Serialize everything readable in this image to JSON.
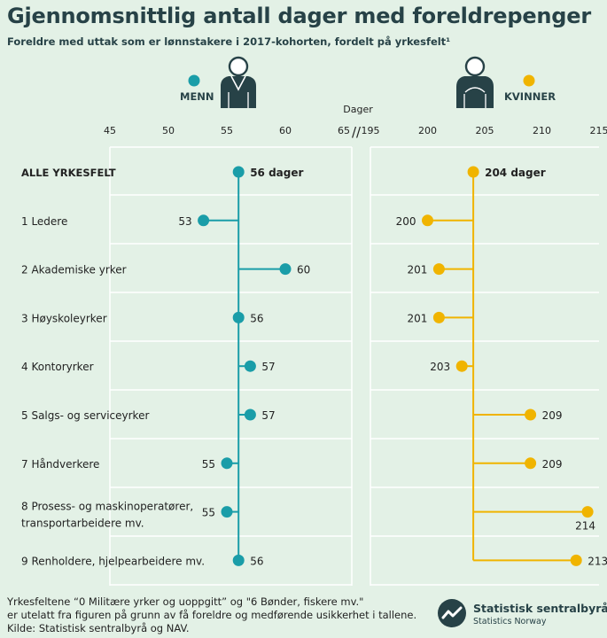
{
  "title": "Gjennomsnittlig antall dager med foreldrepenger",
  "subtitle": "Foreldre med uttak som er lønnstakere i 2017-kohorten, fordelt på yrkesfelt¹",
  "footnote": {
    "line1": "Yrkesfeltene “0 Militære yrker og uoppgitt” og \"6 Bønder, fiskere mv.\"",
    "line2": "er utelatt fra figuren på grunn av få foreldre og medførende usikkerhet i tallene.",
    "line3": "Kilde: Statistisk sentralbyrå og NAV."
  },
  "logo": {
    "name": "Statistisk sentralbyrå",
    "sub": "Statistics Norway",
    "icon": "ssb-logo-icon"
  },
  "colors": {
    "menn": "#1a9da8",
    "kvinner": "#f0b400",
    "gridline": "#ffffff",
    "text_dark": "#274247"
  },
  "chart_data": {
    "type": "dot",
    "title": "Gjennomsnittlig antall dager med foreldrepenger",
    "xlabel": "Dager",
    "categories": [
      "ALLE YRKESFELT",
      "1 Ledere",
      "2 Akademiske yrker",
      "3 Høyskoleyrker",
      "4 Kontoryrker",
      "5 Salgs- og serviceyrker",
      "7 Håndverkere",
      "8 Prosess- og maskinoperatører,\ntransportarbeidere mv.",
      "9 Renholdere, hjelpearbeidere mv."
    ],
    "series": [
      {
        "name": "MENN",
        "values": [
          56,
          53,
          60,
          56,
          57,
          57,
          55,
          55,
          56
        ],
        "reference": 56,
        "reference_label": "56 dager",
        "xlim": [
          45,
          65
        ],
        "ticks": [
          "45",
          "50",
          "55",
          "60",
          "65"
        ],
        "icon": "man-figure-icon"
      },
      {
        "name": "KVINNER",
        "values": [
          204,
          200,
          201,
          201,
          203,
          209,
          209,
          214,
          213
        ],
        "reference": 204,
        "reference_label": "204 dager",
        "xlim": [
          195,
          215
        ],
        "ticks": [
          "195",
          "200",
          "205",
          "210",
          "215"
        ],
        "icon": "woman-figure-icon"
      }
    ],
    "axis_break_symbol": "//"
  }
}
